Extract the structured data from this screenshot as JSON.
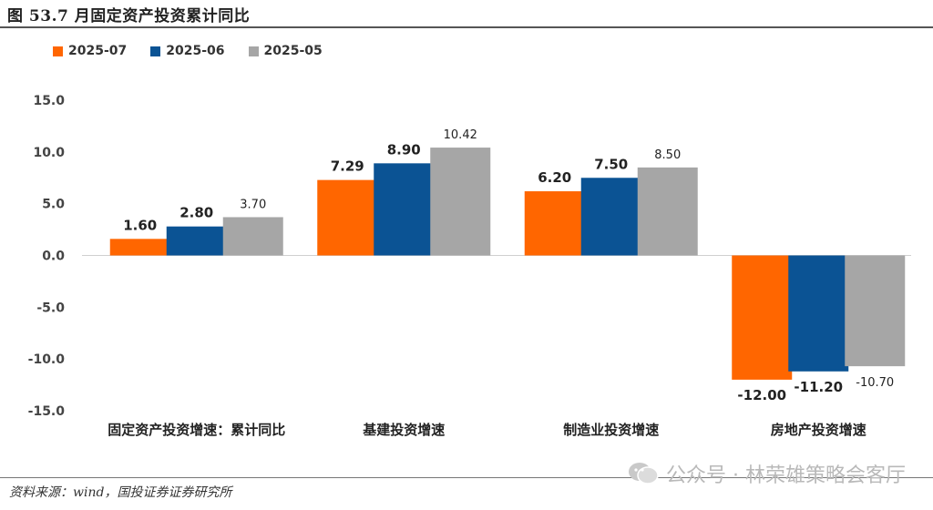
{
  "figure": {
    "title": "图 53.7 月固定资产投资累计同比",
    "source": "资料来源：wind，国投证券证券研究所",
    "watermark": "公众号 · 林荣雄策略会客厅",
    "watermark_icon": "wechat-icon"
  },
  "colors": {
    "2025-07": "#FF6600",
    "2025-06": "#0B5394",
    "2025-05": "#A6A6A6"
  },
  "chart_data": {
    "type": "bar",
    "title": "",
    "xlabel": "",
    "ylabel": "",
    "ylim": [
      -15,
      15
    ],
    "yticks": [
      "15.0",
      "10.0",
      "5.0",
      "0.0",
      "-5.0",
      "-10.0",
      "-15.0"
    ],
    "legend_position": "top-left",
    "grid": false,
    "categories": [
      "固定资产投资增速：累计同比",
      "基建投资增速",
      "制造业投资增速",
      "房地产投资增速"
    ],
    "series": [
      {
        "name": "2025-07",
        "values": [
          1.6,
          7.29,
          6.2,
          -12.0
        ],
        "labels": [
          "1.60",
          "7.29",
          "6.20",
          "-12.00"
        ]
      },
      {
        "name": "2025-06",
        "values": [
          2.8,
          8.9,
          7.5,
          -11.2
        ],
        "labels": [
          "2.80",
          "8.90",
          "7.50",
          "-11.20"
        ]
      },
      {
        "name": "2025-05",
        "values": [
          3.7,
          10.42,
          8.5,
          -10.7
        ],
        "labels": [
          "3.70",
          "10.42",
          "8.50",
          "-10.70"
        ]
      }
    ]
  }
}
